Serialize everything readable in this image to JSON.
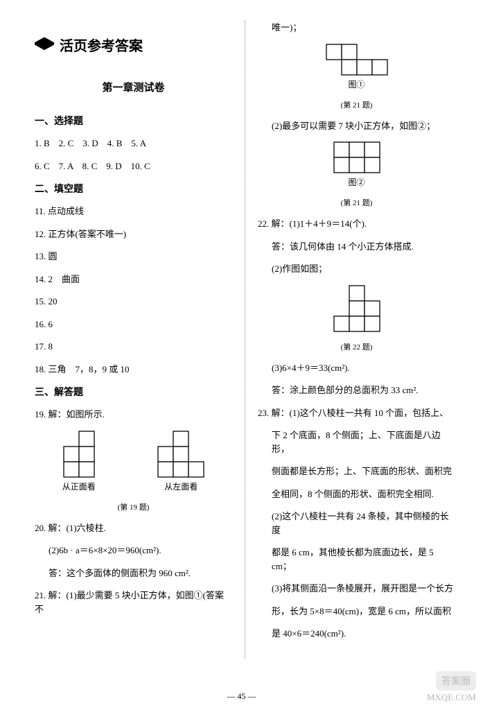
{
  "header": {
    "title": "活页参考答案",
    "subtitle": "第一章测试卷"
  },
  "left": {
    "sec1_h": "一、选择题",
    "row1": "1. B　2. C　3. D　4. B　5. A",
    "row2": "6. C　7. A　8. C　9. D　10. C",
    "sec2_h": "二、填空题",
    "q11": "11. 点动成线",
    "q12": "12. 正方体(答案不唯一)",
    "q13": "13. 圆",
    "q14": "14. 2　曲面",
    "q15": "15. 20",
    "q16": "16. 6",
    "q17": "17. 8",
    "q18": "18. 三角　7，8，9 或 10",
    "sec3_h": "三、解答题",
    "q19": "19. 解：如图所示.",
    "q19_front": "从正面看",
    "q19_left": "从左面看",
    "q19_cap": "(第 19 题)",
    "q20a": "20. 解：(1)六棱柱.",
    "q20b": "(2)6b · a＝6×8×20＝960(cm²).",
    "q20c": "答：这个多面体的侧面积为 960 cm².",
    "q21a": "21. 解：(1)最少需要 5 块小正方体，如图①(答案不"
  },
  "right": {
    "q21_cont": "唯一)；",
    "fig1_label": "图①",
    "fig1_cap": "(第 21 题)",
    "q21b": "(2)最多可以需要 7 块小正方体，如图②；",
    "fig2_label": "图②",
    "fig2_cap": "(第 21 题)",
    "q22a": "22. 解：(1)1＋4＋9＝14(个).",
    "q22b": "答：该几何体由 14 个小正方体搭成.",
    "q22c": "(2)作图如图；",
    "fig22_cap": "(第 22 题)",
    "q22d": "(3)6×4＋9＝33(cm²).",
    "q22e": "答：涂上颜色部分的总面积为 33 cm².",
    "q23a": "23. 解：(1)这个八棱柱一共有 10 个面，包括上、",
    "q23b": "下 2 个底面，8 个侧面；上、下底面是八边形，",
    "q23c": "侧面都是长方形；上、下底面的形状、面积完",
    "q23d": "全相同，8 个侧面的形状、面积完全相同.",
    "q23e": "(2)这个八棱柱一共有 24 条棱，其中侧棱的长度",
    "q23f": "都是 6 cm，其他棱长都为底面边长，是 5 cm；",
    "q23g": "(3)将其侧面沿一条棱展开，展开图是一个长方",
    "q23h": "形，长为 5×8＝40(cm)，宽是 6 cm，所以面积",
    "q23i": "是 40×6＝240(cm²)."
  },
  "figures": {
    "cell": 22,
    "stroke": "#000000",
    "stroke_width": 1.3,
    "fill": "#ffffff",
    "q19_front_cells": [
      [
        1,
        0
      ],
      [
        0,
        1
      ],
      [
        1,
        1
      ],
      [
        0,
        2
      ],
      [
        1,
        2
      ]
    ],
    "q19_left_cells": [
      [
        1,
        0
      ],
      [
        0,
        1
      ],
      [
        1,
        1
      ],
      [
        0,
        2
      ],
      [
        1,
        2
      ],
      [
        2,
        2
      ]
    ],
    "fig1_cells": [
      [
        0,
        0
      ],
      [
        1,
        0
      ],
      [
        1,
        1
      ],
      [
        2,
        1
      ],
      [
        3,
        1
      ]
    ],
    "fig2_cells": [
      [
        0,
        0
      ],
      [
        1,
        0
      ],
      [
        2,
        0
      ],
      [
        0,
        1
      ],
      [
        1,
        1
      ],
      [
        2,
        1
      ]
    ],
    "fig22_cells": [
      [
        1,
        0
      ],
      [
        1,
        1
      ],
      [
        2,
        1
      ],
      [
        0,
        2
      ],
      [
        1,
        2
      ],
      [
        2,
        2
      ]
    ]
  },
  "footer": {
    "page": "— 45 —"
  },
  "watermark": {
    "badge": "答案圈",
    "url": "MXQE.COM"
  }
}
